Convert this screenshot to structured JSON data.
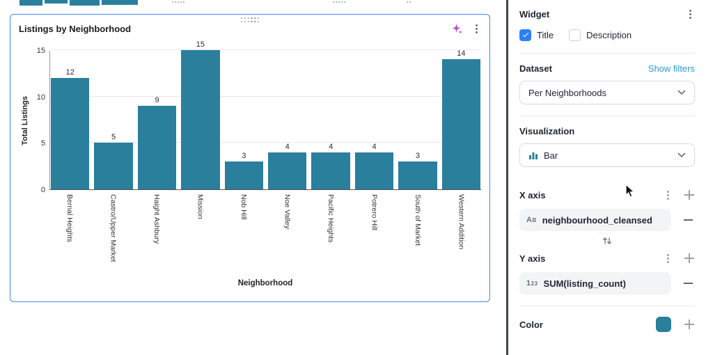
{
  "canvas": {
    "widget": {
      "border_color": "#4285f4"
    }
  },
  "chart_data": {
    "type": "bar",
    "title": "Listings by Neighborhood",
    "categories": [
      "Bernal Heights",
      "Castro/Upper Market",
      "Haight Ashbury",
      "Mission",
      "Nob Hill",
      "Noe Valley",
      "Pacific Heights",
      "Potrero Hill",
      "South of Market",
      "Western Addition"
    ],
    "values": [
      12,
      5,
      9,
      15,
      3,
      4,
      4,
      4,
      3,
      14
    ],
    "xlabel": "Neighborhood",
    "ylabel": "Total Listings",
    "ylim": [
      0,
      15
    ],
    "yticks": [
      0,
      5,
      10,
      15
    ],
    "bar_color": "#2a7f9d",
    "grid": true,
    "value_labels": true,
    "legend": false
  },
  "panel": {
    "header": "Widget",
    "title_option": {
      "label": "Title",
      "checked": true
    },
    "description_option": {
      "label": "Description",
      "checked": false
    },
    "dataset": {
      "label": "Dataset",
      "link": "Show filters",
      "selected": "Per Neighborhoods"
    },
    "visualization": {
      "label": "Visualization",
      "selected": "Bar"
    },
    "x_axis": {
      "label": "X axis",
      "field": "neighbourhood_cleansed",
      "type_glyph": "AB"
    },
    "y_axis": {
      "label": "Y axis",
      "field": "SUM(listing_count)",
      "type_glyph": "123"
    },
    "color": {
      "label": "Color",
      "value": "#2a7f9d"
    },
    "checkbox_color": "#2d7ff9",
    "link_color": "#2b9cd9"
  }
}
